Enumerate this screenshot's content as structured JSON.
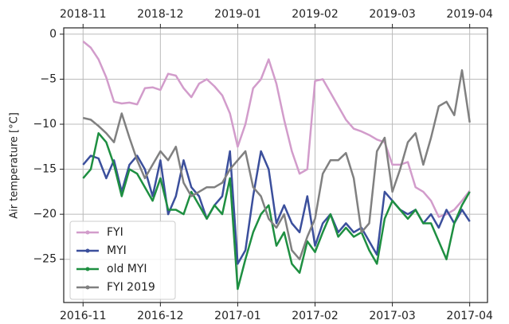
{
  "chart_data": {
    "type": "line",
    "ylabel": "Air temperature [°C]",
    "x": [
      0,
      0.1,
      0.2,
      0.3,
      0.4,
      0.5,
      0.6,
      0.7,
      0.8,
      0.9,
      1.0,
      1.1,
      1.2,
      1.3,
      1.4,
      1.5,
      1.6,
      1.7,
      1.8,
      1.9,
      2.0,
      2.1,
      2.2,
      2.3,
      2.4,
      2.5,
      2.6,
      2.7,
      2.8,
      2.9,
      3.0,
      3.1,
      3.2,
      3.3,
      3.4,
      3.5,
      3.6,
      3.7,
      3.8,
      3.9,
      4.0,
      4.1,
      4.2,
      4.3,
      4.4,
      4.5,
      4.6,
      4.7,
      4.8,
      4.9,
      5.0
    ],
    "series": [
      {
        "name": "FYI",
        "color": "#d29ccb",
        "values": [
          -0.8,
          -1.5,
          -2.8,
          -4.8,
          -7.5,
          -7.7,
          -7.6,
          -7.8,
          -6,
          -5.9,
          -6.2,
          -4.4,
          -4.6,
          -6,
          -7,
          -5.5,
          -5,
          -5.8,
          -6.8,
          -8.8,
          -12.5,
          -10,
          -6,
          -5,
          -2.8,
          -5.5,
          -9.5,
          -13,
          -15.5,
          -15,
          -5.2,
          -5,
          -6.5,
          -8,
          -9.5,
          -10.5,
          -10.8,
          -11.2,
          -11.7,
          -12,
          -14.5,
          -14.5,
          -14.2,
          -17,
          -17.5,
          -18.5,
          -20.3,
          -20,
          -19.5,
          -18.5,
          -17.4
        ]
      },
      {
        "name": "MYI",
        "color": "#3b4f9c",
        "values": [
          -14.5,
          -13.5,
          -13.8,
          -16,
          -14,
          -17.5,
          -14.5,
          -13.5,
          -15,
          -18,
          -14,
          -20,
          -18,
          -14,
          -17,
          -18,
          -20.5,
          -19,
          -18,
          -13,
          -25.5,
          -24,
          -18,
          -13,
          -15,
          -21,
          -19,
          -21,
          -22,
          -18,
          -23.5,
          -21,
          -20,
          -22,
          -21,
          -22,
          -21.5,
          -23,
          -24.5,
          -17.5,
          -18.5,
          -19.5,
          -20,
          -19.5,
          -21,
          -20,
          -21.5,
          -19.5,
          -21,
          -19.5,
          -20.8
        ]
      },
      {
        "name": "old MYI",
        "color": "#1e8f41",
        "values": [
          -16,
          -15,
          -11,
          -12,
          -14.5,
          -18,
          -15,
          -15.5,
          -17,
          -18.5,
          -16,
          -19.5,
          -19.5,
          -20,
          -17.5,
          -19,
          -20.5,
          -19,
          -20,
          -16,
          -28.3,
          -25,
          -22,
          -20,
          -19,
          -23.5,
          -22,
          -25.5,
          -26.5,
          -23,
          -24.2,
          -22,
          -20,
          -22.5,
          -21.5,
          -22.5,
          -22,
          -24,
          -25.5,
          -20.5,
          -18.5,
          -19.5,
          -20.5,
          -19.5,
          -21,
          -21,
          -23,
          -25,
          -21,
          -19,
          -17.5
        ]
      },
      {
        "name": "FYI 2019",
        "color": "#808080",
        "axis": "x2",
        "values": [
          -9.3,
          -9.5,
          -10.2,
          -11,
          -12,
          -8.8,
          -11.5,
          -14,
          -16,
          -14.5,
          -13,
          -14,
          -12.5,
          -16.5,
          -18,
          -17.5,
          -17,
          -17,
          -16.5,
          -15,
          -14,
          -13,
          -17,
          -18,
          -20.5,
          -21.5,
          -20,
          -24,
          -25,
          -22.5,
          -20.5,
          -15.5,
          -14,
          -14,
          -13.2,
          -16,
          -22,
          -21,
          -13,
          -11.5,
          -17.5,
          -15,
          -12,
          -11,
          -14.5,
          -11.5,
          -8,
          -7.5,
          -9,
          -4,
          -9.8
        ]
      }
    ],
    "xlim": [
      -0.25,
      5.23
    ],
    "xticks": [
      {
        "value": 0,
        "label": "2016-11"
      },
      {
        "value": 1,
        "label": "2016-12"
      },
      {
        "value": 2,
        "label": "2017-01"
      },
      {
        "value": 3,
        "label": "2017-02"
      },
      {
        "value": 4,
        "label": "2017-03"
      },
      {
        "value": 5,
        "label": "2017-04"
      }
    ],
    "x2ticks": [
      {
        "value": 0,
        "label": "2018-11"
      },
      {
        "value": 1,
        "label": "2018-12"
      },
      {
        "value": 2,
        "label": "2019-01"
      },
      {
        "value": 3,
        "label": "2019-02"
      },
      {
        "value": 4,
        "label": "2019-03"
      },
      {
        "value": 5,
        "label": "2019-04"
      }
    ],
    "ylim": [
      -29.8,
      0.7
    ],
    "yticks": [
      {
        "value": -25,
        "label": "−25"
      },
      {
        "value": -20,
        "label": "−20"
      },
      {
        "value": -15,
        "label": "−15"
      },
      {
        "value": -10,
        "label": "−10"
      },
      {
        "value": -5,
        "label": "−5"
      },
      0
    ],
    "grid": true,
    "legend": "lower left"
  }
}
